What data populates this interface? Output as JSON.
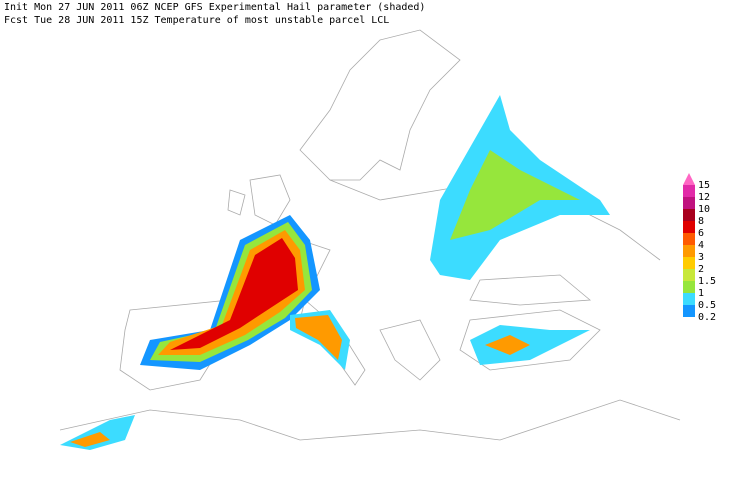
{
  "header": {
    "lines": [
      "Init  Mon 27 JUN 2011 06Z  NCEP GFS Experimental Hail parameter (shaded)",
      "Fcst Tue 28 JUN 2011 15Z  Temperature of most unstable parcel LCL"
    ]
  },
  "legend": {
    "levels": [
      {
        "label": "15",
        "color": "#ff66c4"
      },
      {
        "label": "12",
        "color": "#e22aa8"
      },
      {
        "label": "10",
        "color": "#c0127e"
      },
      {
        "label": "8",
        "color": "#a8001e"
      },
      {
        "label": "6",
        "color": "#e00000"
      },
      {
        "label": "4",
        "color": "#ff5a00"
      },
      {
        "label": "3",
        "color": "#ff9a00"
      },
      {
        "label": "2",
        "color": "#ffcc00"
      },
      {
        "label": "1.5",
        "color": "#c8e83a"
      },
      {
        "label": "1",
        "color": "#96e63c"
      },
      {
        "label": "0.5",
        "color": "#3cdcff"
      },
      {
        "label": "0.2",
        "color": "#1496ff"
      }
    ]
  }
}
